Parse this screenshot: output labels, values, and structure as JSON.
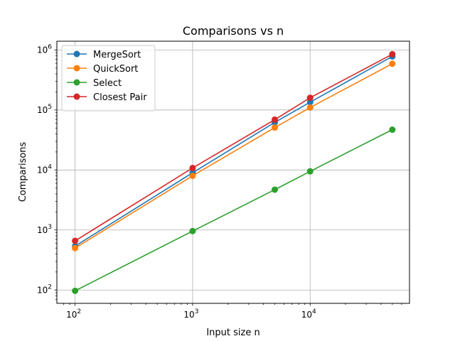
{
  "chart_data": {
    "type": "line",
    "title": "Comparisons vs n",
    "xlabel": "Input size n",
    "ylabel": "Comparisons",
    "x_scale": "log",
    "y_scale": "log",
    "xlim": [
      70,
      70000
    ],
    "ylim": [
      60,
      1400000
    ],
    "grid": true,
    "legend_position": "top-left",
    "x_ticks": [
      {
        "value": 100,
        "base": "10",
        "exp": "2"
      },
      {
        "value": 1000,
        "base": "10",
        "exp": "3"
      },
      {
        "value": 10000,
        "base": "10",
        "exp": "4"
      }
    ],
    "y_ticks": [
      {
        "value": 100,
        "base": "10",
        "exp": "2"
      },
      {
        "value": 1000,
        "base": "10",
        "exp": "3"
      },
      {
        "value": 10000,
        "base": "10",
        "exp": "4"
      },
      {
        "value": 100000,
        "base": "10",
        "exp": "5"
      },
      {
        "value": 1000000,
        "base": "10",
        "exp": "6"
      }
    ],
    "x": [
      100,
      1000,
      5000,
      10000,
      50000
    ],
    "series": [
      {
        "name": "MergeSort",
        "color": "#1f77b4",
        "values": [
          540,
          9000,
          62000,
          135000,
          780000
        ]
      },
      {
        "name": "QuickSort",
        "color": "#ff7f0e",
        "values": [
          500,
          8000,
          51000,
          110000,
          590000
        ]
      },
      {
        "name": "Select",
        "color": "#2ca02c",
        "values": [
          97,
          960,
          4700,
          9500,
          47000
        ]
      },
      {
        "name": "Closest Pair",
        "color": "#d62728",
        "values": [
          660,
          10800,
          69000,
          160000,
          850000
        ]
      }
    ]
  }
}
